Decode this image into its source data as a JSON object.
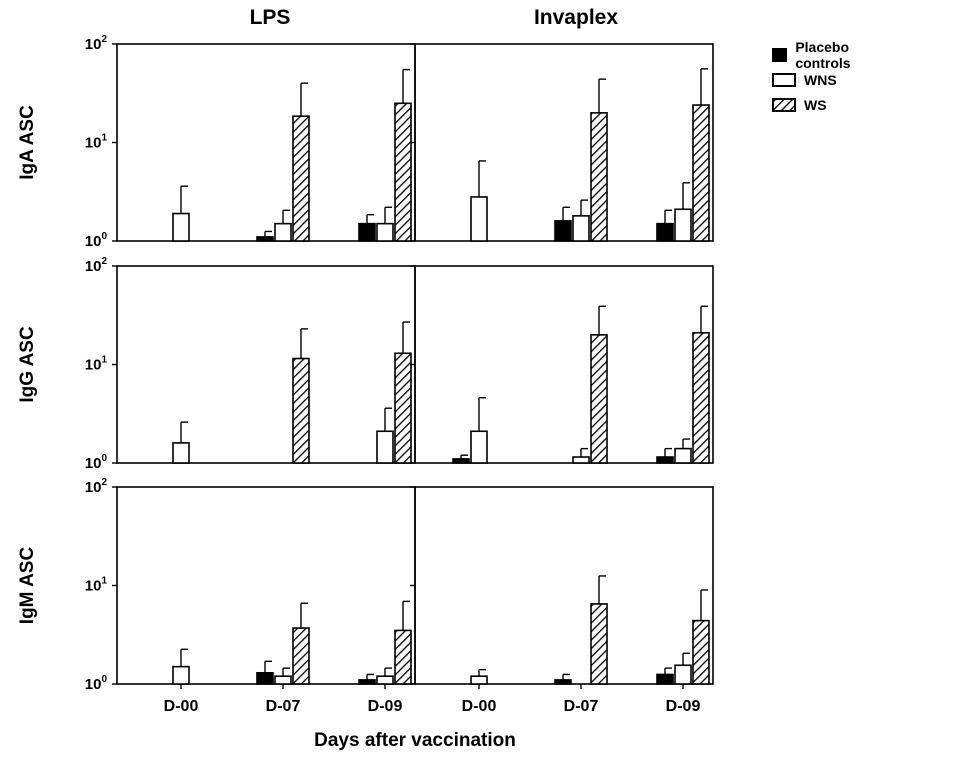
{
  "chart_data": {
    "type": "bar",
    "y_scale": "log",
    "ylim": [
      1,
      100
    ],
    "y_ticks": [
      {
        "value": 1,
        "base": "10",
        "exp": "0"
      },
      {
        "value": 10,
        "base": "10",
        "exp": "1"
      },
      {
        "value": 100,
        "base": "10",
        "exp": "2"
      }
    ],
    "categories": [
      "D-00",
      "D-07",
      "D-09"
    ],
    "xlabel": "Days after vaccination",
    "columns": [
      "LPS",
      "Invaplex"
    ],
    "rows": [
      "IgA ASC",
      "IgG ASC",
      "IgM ASC"
    ],
    "series": [
      {
        "name": "Placebo controls",
        "fill": "solid",
        "color": "#000000"
      },
      {
        "name": "WNS",
        "fill": "open",
        "color": "#ffffff"
      },
      {
        "name": "WS",
        "fill": "hatched",
        "color": "#000000"
      }
    ],
    "panels": [
      {
        "row": "IgA ASC",
        "column": "LPS",
        "values": {
          "Placebo controls": [
            null,
            1.1,
            1.5
          ],
          "WNS": [
            1.9,
            1.5,
            1.5
          ],
          "WS": [
            null,
            18.5,
            25
          ]
        },
        "errors": {
          "Placebo controls": [
            null,
            1.25,
            1.85
          ],
          "WNS": [
            3.6,
            2.05,
            2.2
          ],
          "WS": [
            null,
            40,
            55
          ]
        }
      },
      {
        "row": "IgA ASC",
        "column": "Invaplex",
        "values": {
          "Placebo controls": [
            null,
            1.6,
            1.5
          ],
          "WNS": [
            2.8,
            1.8,
            2.1
          ],
          "WS": [
            null,
            20,
            24
          ]
        },
        "errors": {
          "Placebo controls": [
            null,
            2.2,
            2.05
          ],
          "WNS": [
            6.5,
            2.6,
            3.9
          ],
          "WS": [
            null,
            44,
            56
          ]
        }
      },
      {
        "row": "IgG ASC",
        "column": "LPS",
        "values": {
          "Placebo controls": [
            null,
            null,
            null
          ],
          "WNS": [
            1.6,
            null,
            2.1
          ],
          "WS": [
            null,
            11.5,
            13
          ]
        },
        "errors": {
          "Placebo controls": [
            null,
            null,
            null
          ],
          "WNS": [
            2.6,
            null,
            3.6
          ],
          "WS": [
            null,
            23,
            27
          ]
        }
      },
      {
        "row": "IgG ASC",
        "column": "Invaplex",
        "values": {
          "Placebo controls": [
            1.1,
            null,
            1.15
          ],
          "WNS": [
            2.1,
            1.15,
            1.4
          ],
          "WS": [
            null,
            20,
            21
          ]
        },
        "errors": {
          "Placebo controls": [
            1.2,
            null,
            1.4
          ],
          "WNS": [
            4.6,
            1.4,
            1.75
          ],
          "WS": [
            null,
            39,
            39
          ]
        }
      },
      {
        "row": "IgM ASC",
        "column": "LPS",
        "values": {
          "Placebo controls": [
            null,
            1.3,
            1.1
          ],
          "WNS": [
            1.5,
            1.2,
            1.2
          ],
          "WS": [
            null,
            3.7,
            3.5
          ]
        },
        "errors": {
          "Placebo controls": [
            null,
            1.7,
            1.25
          ],
          "WNS": [
            2.25,
            1.45,
            1.45
          ],
          "WS": [
            null,
            6.6,
            6.9
          ]
        }
      },
      {
        "row": "IgM ASC",
        "column": "Invaplex",
        "values": {
          "Placebo controls": [
            null,
            1.1,
            1.25
          ],
          "WNS": [
            1.2,
            null,
            1.55
          ],
          "WS": [
            null,
            6.5,
            4.4
          ]
        },
        "errors": {
          "Placebo controls": [
            null,
            1.25,
            1.45
          ],
          "WNS": [
            1.4,
            null,
            2.05
          ],
          "WS": [
            null,
            12.5,
            9
          ]
        }
      }
    ],
    "legend_position": "top-right",
    "grid": false
  }
}
